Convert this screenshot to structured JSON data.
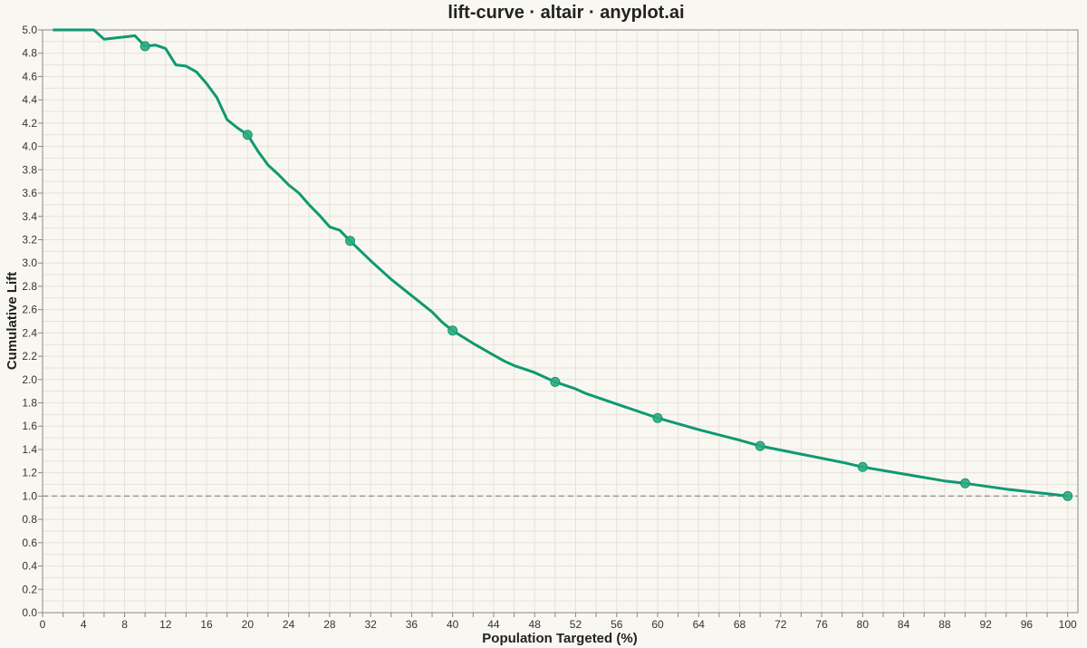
{
  "chart_data": {
    "type": "line",
    "title": "lift-curve · altair · anyplot.ai",
    "xlabel": "Population Targeted (%)",
    "ylabel": "Cumulative Lift",
    "xlim": [
      0,
      101
    ],
    "ylim": [
      0,
      5
    ],
    "grid": true,
    "legend": "none",
    "colors": {
      "line": "#0f9972",
      "marker": "#2eaa80",
      "baseline": "#999999",
      "background": "#f9f7f1",
      "grid": "#e6e2d8"
    },
    "x_ticks": [
      "0",
      "4",
      "8",
      "12",
      "16",
      "20",
      "24",
      "28",
      "32",
      "36",
      "40",
      "44",
      "48",
      "52",
      "56",
      "60",
      "64",
      "68",
      "72",
      "76",
      "80",
      "84",
      "88",
      "92",
      "96",
      "100"
    ],
    "y_ticks": [
      "0.0",
      "0.2",
      "0.4",
      "0.6",
      "0.8",
      "1.0",
      "1.2",
      "1.4",
      "1.6",
      "1.8",
      "2.0",
      "2.2",
      "2.4",
      "2.6",
      "2.8",
      "3.0",
      "3.2",
      "3.4",
      "3.6",
      "3.8",
      "4.0",
      "4.2",
      "4.4",
      "4.6",
      "4.8",
      "5.0"
    ],
    "baseline": 1.0,
    "series": [
      {
        "x": [
          1,
          2,
          3,
          4,
          5,
          6,
          7,
          8,
          9,
          10,
          11,
          12,
          13,
          14,
          15,
          16,
          17,
          18,
          19,
          20,
          21,
          22,
          23,
          24,
          25,
          26,
          27,
          28,
          29,
          30,
          32,
          34,
          36,
          38,
          39,
          40,
          42,
          44,
          45,
          46,
          47,
          48,
          50,
          52,
          53,
          54,
          56,
          58,
          60,
          64,
          68,
          70,
          74,
          78,
          80,
          84,
          88,
          90,
          94,
          98,
          100
        ],
        "y": [
          5.0,
          5.0,
          5.0,
          5.0,
          5.0,
          4.92,
          4.93,
          4.94,
          4.95,
          4.86,
          4.87,
          4.84,
          4.7,
          4.69,
          4.64,
          4.54,
          4.42,
          4.23,
          4.16,
          4.1,
          3.96,
          3.84,
          3.76,
          3.67,
          3.6,
          3.5,
          3.41,
          3.31,
          3.28,
          3.19,
          3.02,
          2.86,
          2.72,
          2.58,
          2.49,
          2.42,
          2.31,
          2.21,
          2.16,
          2.12,
          2.09,
          2.06,
          1.98,
          1.92,
          1.88,
          1.85,
          1.79,
          1.73,
          1.67,
          1.57,
          1.48,
          1.43,
          1.36,
          1.29,
          1.25,
          1.19,
          1.13,
          1.11,
          1.06,
          1.02,
          1.0
        ]
      }
    ],
    "markers": {
      "x": [
        10,
        20,
        30,
        40,
        50,
        60,
        70,
        80,
        90,
        100
      ],
      "y": [
        4.86,
        4.1,
        3.19,
        2.42,
        1.98,
        1.67,
        1.43,
        1.25,
        1.11,
        1.0
      ]
    }
  }
}
